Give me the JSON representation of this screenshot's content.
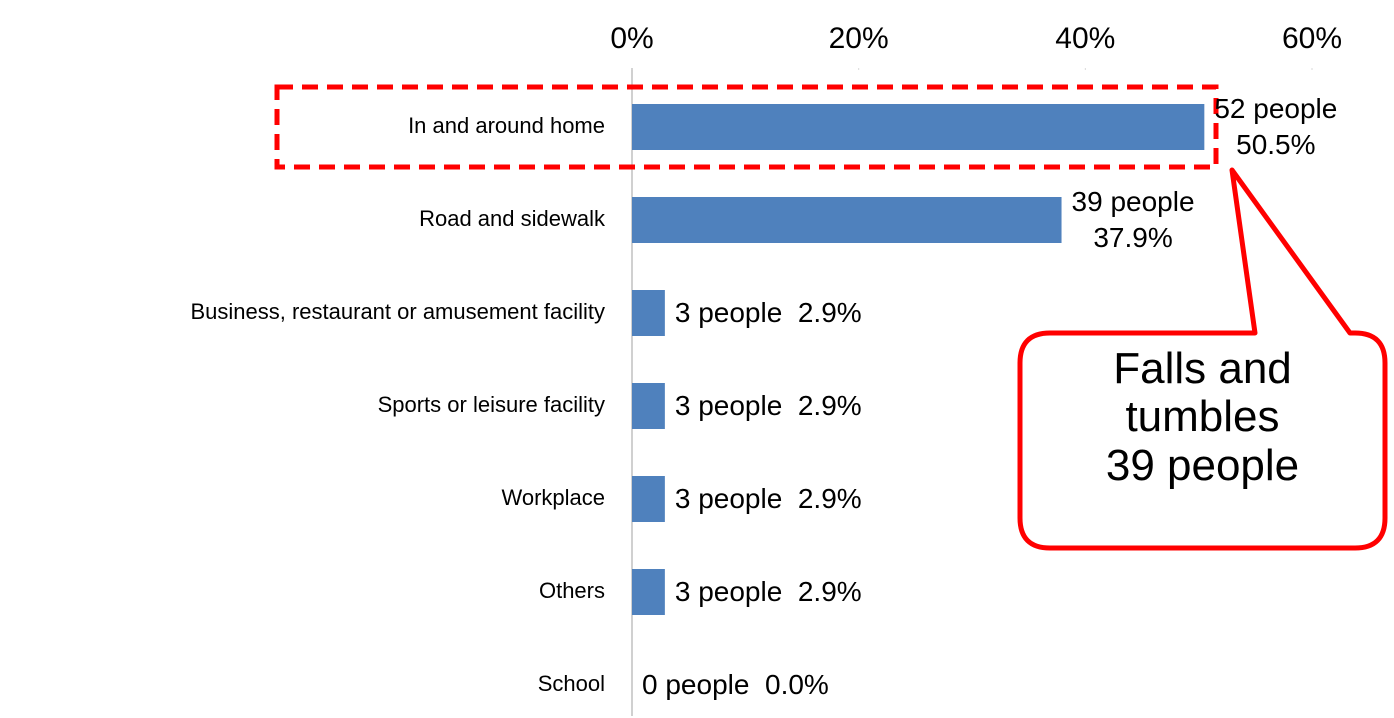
{
  "chart_data": {
    "type": "bar",
    "orientation": "horizontal",
    "categories": [
      "In and around home",
      "Road and sidewalk",
      "Business, restaurant or amusement facility",
      "Sports or leisure facility",
      "Workplace",
      "Others",
      "School"
    ],
    "values": [
      50.5,
      37.9,
      2.9,
      2.9,
      2.9,
      2.9,
      0.0
    ],
    "value_labels": [
      "52 people\n50.5%",
      "39 people\n37.9%",
      "3 people  2.9%",
      "3 people  2.9%",
      "3 people  2.9%",
      "3 people  2.9%",
      "0 people  0.0%"
    ],
    "color": "#4f81bd",
    "xlim": [
      0,
      60
    ],
    "xticks": [
      {
        "value": 0,
        "label": "0%"
      },
      {
        "value": 20,
        "label": "20%"
      },
      {
        "value": 40,
        "label": "40%"
      },
      {
        "value": 60,
        "label": "60%"
      }
    ],
    "annotation": "Falls and\ntumbles\n39 people"
  }
}
